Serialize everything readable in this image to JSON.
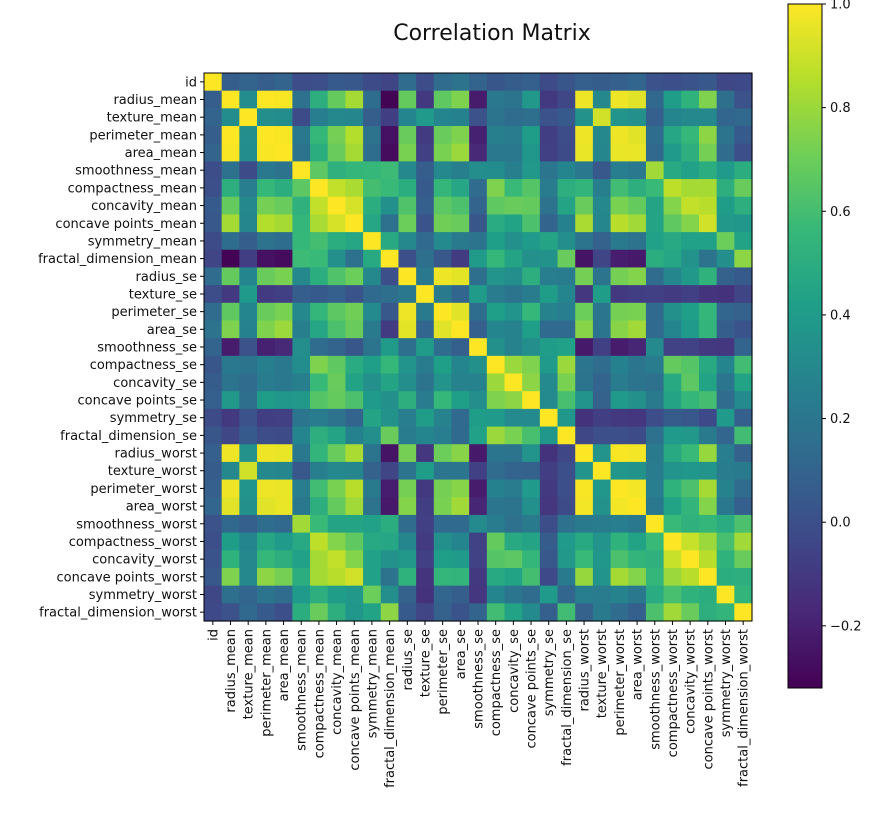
{
  "chart_data": {
    "type": "heatmap",
    "title": "Correlation Matrix",
    "labels": [
      "id",
      "radius_mean",
      "texture_mean",
      "perimeter_mean",
      "area_mean",
      "smoothness_mean",
      "compactness_mean",
      "concavity_mean",
      "concave points_mean",
      "symmetry_mean",
      "fractal_dimension_mean",
      "radius_se",
      "texture_se",
      "perimeter_se",
      "area_se",
      "smoothness_se",
      "compactness_se",
      "concavity_se",
      "concave points_se",
      "symmetry_se",
      "fractal_dimension_se",
      "radius_worst",
      "texture_worst",
      "perimeter_worst",
      "area_worst",
      "smoothness_worst",
      "compactness_worst",
      "concavity_worst",
      "concave points_worst",
      "symmetry_worst",
      "fractal_dimension_worst"
    ],
    "colormap": "viridis",
    "colorbar": {
      "range": [
        -0.32,
        1.0
      ],
      "ticks": [
        -0.2,
        0.0,
        0.2,
        0.4,
        0.6,
        0.8,
        1.0
      ],
      "tick_labels": [
        "−0.2",
        "0.0",
        "0.2",
        "0.4",
        "0.6",
        "0.8",
        "1.0"
      ]
    },
    "values": [
      [
        1.0,
        0.07,
        0.1,
        0.07,
        0.1,
        -0.01,
        0.0,
        0.05,
        0.04,
        -0.02,
        -0.05,
        0.14,
        -0.01,
        0.14,
        0.18,
        0.1,
        0.03,
        0.06,
        0.08,
        -0.02,
        0.03,
        0.08,
        0.06,
        0.08,
        0.11,
        0.01,
        -0.0,
        0.02,
        0.04,
        -0.04,
        -0.03
      ],
      [
        0.07,
        1.0,
        0.32,
        1.0,
        0.99,
        0.17,
        0.51,
        0.68,
        0.82,
        0.15,
        -0.31,
        0.68,
        -0.1,
        0.67,
        0.74,
        -0.22,
        0.21,
        0.19,
        0.38,
        -0.1,
        -0.04,
        0.97,
        0.3,
        0.97,
        0.94,
        0.12,
        0.41,
        0.53,
        0.74,
        0.16,
        0.01
      ],
      [
        0.1,
        0.32,
        1.0,
        0.33,
        0.32,
        -0.02,
        0.24,
        0.3,
        0.29,
        0.07,
        -0.08,
        0.28,
        0.39,
        0.28,
        0.26,
        0.01,
        0.19,
        0.14,
        0.16,
        0.01,
        0.05,
        0.35,
        0.91,
        0.36,
        0.34,
        0.08,
        0.28,
        0.3,
        0.3,
        0.11,
        0.12
      ],
      [
        0.07,
        1.0,
        0.33,
        1.0,
        0.99,
        0.21,
        0.56,
        0.72,
        0.85,
        0.18,
        -0.26,
        0.69,
        -0.09,
        0.69,
        0.74,
        -0.2,
        0.25,
        0.23,
        0.41,
        -0.08,
        -0.01,
        0.97,
        0.3,
        0.97,
        0.94,
        0.15,
        0.46,
        0.56,
        0.77,
        0.19,
        0.05
      ],
      [
        0.1,
        0.99,
        0.32,
        0.99,
        1.0,
        0.18,
        0.5,
        0.69,
        0.82,
        0.15,
        -0.28,
        0.73,
        -0.07,
        0.73,
        0.8,
        -0.17,
        0.21,
        0.21,
        0.37,
        -0.07,
        -0.02,
        0.96,
        0.29,
        0.96,
        0.96,
        0.12,
        0.39,
        0.51,
        0.72,
        0.14,
        0.0
      ],
      [
        -0.01,
        0.17,
        -0.02,
        0.21,
        0.18,
        1.0,
        0.66,
        0.52,
        0.55,
        0.56,
        0.58,
        0.3,
        0.07,
        0.3,
        0.25,
        0.33,
        0.32,
        0.25,
        0.38,
        0.2,
        0.28,
        0.21,
        0.04,
        0.24,
        0.21,
        0.81,
        0.47,
        0.43,
        0.5,
        0.39,
        0.5
      ],
      [
        0.0,
        0.51,
        0.24,
        0.56,
        0.5,
        0.66,
        1.0,
        0.88,
        0.83,
        0.6,
        0.57,
        0.5,
        0.05,
        0.55,
        0.46,
        0.14,
        0.74,
        0.57,
        0.64,
        0.23,
        0.51,
        0.54,
        0.25,
        0.59,
        0.51,
        0.57,
        0.87,
        0.82,
        0.82,
        0.51,
        0.69
      ],
      [
        0.05,
        0.68,
        0.3,
        0.72,
        0.69,
        0.52,
        0.88,
        1.0,
        0.92,
        0.5,
        0.34,
        0.63,
        0.08,
        0.66,
        0.62,
        0.1,
        0.67,
        0.69,
        0.68,
        0.18,
        0.45,
        0.69,
        0.3,
        0.73,
        0.68,
        0.45,
        0.75,
        0.88,
        0.86,
        0.41,
        0.51
      ],
      [
        0.04,
        0.82,
        0.29,
        0.85,
        0.82,
        0.55,
        0.83,
        0.92,
        1.0,
        0.46,
        0.17,
        0.7,
        0.02,
        0.71,
        0.69,
        0.03,
        0.49,
        0.44,
        0.62,
        0.1,
        0.26,
        0.83,
        0.29,
        0.86,
        0.81,
        0.45,
        0.67,
        0.75,
        0.91,
        0.38,
        0.37
      ],
      [
        -0.02,
        0.15,
        0.07,
        0.18,
        0.15,
        0.56,
        0.6,
        0.5,
        0.46,
        1.0,
        0.48,
        0.3,
        0.13,
        0.31,
        0.22,
        0.19,
        0.42,
        0.34,
        0.39,
        0.45,
        0.33,
        0.19,
        0.09,
        0.22,
        0.18,
        0.43,
        0.47,
        0.43,
        0.43,
        0.7,
        0.44
      ],
      [
        -0.05,
        -0.31,
        -0.08,
        -0.26,
        -0.28,
        0.58,
        0.57,
        0.34,
        0.17,
        0.48,
        1.0,
        0.0,
        0.16,
        0.04,
        -0.09,
        0.4,
        0.56,
        0.45,
        0.34,
        0.35,
        0.69,
        -0.25,
        -0.05,
        -0.21,
        -0.23,
        0.5,
        0.46,
        0.35,
        0.18,
        0.33,
        0.77
      ],
      [
        0.14,
        0.68,
        0.28,
        0.69,
        0.73,
        0.3,
        0.5,
        0.63,
        0.7,
        0.3,
        0.0,
        1.0,
        0.21,
        0.97,
        0.95,
        0.16,
        0.36,
        0.33,
        0.51,
        0.24,
        0.23,
        0.72,
        0.19,
        0.72,
        0.75,
        0.14,
        0.29,
        0.38,
        0.53,
        0.09,
        0.05
      ],
      [
        -0.01,
        -0.1,
        0.39,
        -0.09,
        -0.07,
        0.07,
        0.05,
        0.08,
        0.02,
        0.13,
        0.16,
        0.21,
        1.0,
        0.22,
        0.11,
        0.4,
        0.23,
        0.19,
        0.23,
        0.41,
        0.28,
        -0.11,
        0.41,
        -0.1,
        -0.08,
        -0.07,
        -0.09,
        -0.07,
        -0.12,
        -0.13,
        -0.05
      ],
      [
        0.14,
        0.67,
        0.28,
        0.69,
        0.73,
        0.3,
        0.55,
        0.66,
        0.71,
        0.31,
        0.04,
        0.97,
        0.22,
        1.0,
        0.94,
        0.15,
        0.42,
        0.36,
        0.56,
        0.27,
        0.24,
        0.7,
        0.2,
        0.72,
        0.73,
        0.13,
        0.34,
        0.42,
        0.55,
        0.11,
        0.09
      ],
      [
        0.18,
        0.74,
        0.26,
        0.74,
        0.8,
        0.25,
        0.46,
        0.62,
        0.69,
        0.22,
        -0.09,
        0.95,
        0.11,
        0.94,
        1.0,
        0.08,
        0.28,
        0.27,
        0.42,
        0.13,
        0.13,
        0.76,
        0.2,
        0.76,
        0.81,
        0.13,
        0.28,
        0.39,
        0.54,
        0.07,
        0.02
      ],
      [
        0.1,
        -0.22,
        0.01,
        -0.2,
        -0.17,
        0.33,
        0.14,
        0.1,
        0.03,
        0.19,
        0.4,
        0.16,
        0.4,
        0.15,
        0.08,
        1.0,
        0.34,
        0.27,
        0.33,
        0.41,
        0.43,
        -0.23,
        -0.07,
        -0.22,
        -0.18,
        0.31,
        -0.06,
        -0.06,
        -0.1,
        -0.11,
        0.1
      ],
      [
        0.03,
        0.21,
        0.19,
        0.25,
        0.21,
        0.32,
        0.74,
        0.67,
        0.49,
        0.42,
        0.56,
        0.36,
        0.23,
        0.42,
        0.28,
        0.34,
        1.0,
        0.8,
        0.74,
        0.39,
        0.8,
        0.2,
        0.14,
        0.26,
        0.2,
        0.23,
        0.68,
        0.64,
        0.48,
        0.28,
        0.59
      ],
      [
        0.06,
        0.19,
        0.14,
        0.23,
        0.21,
        0.25,
        0.57,
        0.69,
        0.44,
        0.34,
        0.45,
        0.33,
        0.19,
        0.36,
        0.27,
        0.27,
        0.8,
        1.0,
        0.77,
        0.31,
        0.73,
        0.19,
        0.1,
        0.23,
        0.19,
        0.17,
        0.48,
        0.66,
        0.44,
        0.2,
        0.44
      ],
      [
        0.08,
        0.38,
        0.16,
        0.41,
        0.37,
        0.38,
        0.64,
        0.68,
        0.62,
        0.39,
        0.34,
        0.51,
        0.23,
        0.56,
        0.42,
        0.33,
        0.74,
        0.77,
        1.0,
        0.31,
        0.61,
        0.36,
        0.09,
        0.39,
        0.34,
        0.22,
        0.45,
        0.55,
        0.6,
        0.14,
        0.31
      ],
      [
        -0.02,
        -0.1,
        0.01,
        -0.08,
        -0.07,
        0.2,
        0.23,
        0.18,
        0.1,
        0.45,
        0.35,
        0.24,
        0.41,
        0.27,
        0.13,
        0.41,
        0.39,
        0.31,
        0.31,
        1.0,
        0.37,
        -0.13,
        -0.08,
        -0.1,
        -0.11,
        -0.01,
        0.06,
        0.04,
        -0.03,
        0.39,
        0.08
      ],
      [
        0.03,
        -0.04,
        0.05,
        -0.01,
        -0.02,
        0.28,
        0.51,
        0.45,
        0.26,
        0.33,
        0.69,
        0.23,
        0.28,
        0.24,
        0.13,
        0.43,
        0.8,
        0.73,
        0.61,
        0.37,
        1.0,
        -0.04,
        -0.0,
        -0.0,
        -0.02,
        0.17,
        0.39,
        0.38,
        0.22,
        0.11,
        0.59
      ],
      [
        0.08,
        0.97,
        0.35,
        0.97,
        0.96,
        0.21,
        0.54,
        0.69,
        0.83,
        0.19,
        -0.25,
        0.72,
        -0.11,
        0.7,
        0.76,
        -0.23,
        0.2,
        0.19,
        0.36,
        -0.13,
        -0.04,
        1.0,
        0.36,
        0.99,
        0.98,
        0.22,
        0.48,
        0.57,
        0.79,
        0.24,
        0.09
      ],
      [
        0.06,
        0.3,
        0.91,
        0.3,
        0.29,
        0.04,
        0.25,
        0.3,
        0.29,
        0.09,
        -0.05,
        0.19,
        0.41,
        0.2,
        0.2,
        -0.07,
        0.14,
        0.1,
        0.09,
        -0.08,
        -0.0,
        0.36,
        1.0,
        0.37,
        0.35,
        0.23,
        0.36,
        0.37,
        0.36,
        0.23,
        0.22
      ],
      [
        0.08,
        0.97,
        0.36,
        0.97,
        0.96,
        0.24,
        0.59,
        0.73,
        0.86,
        0.22,
        -0.21,
        0.72,
        -0.1,
        0.72,
        0.76,
        -0.22,
        0.26,
        0.23,
        0.39,
        -0.1,
        -0.0,
        0.99,
        0.37,
        1.0,
        0.98,
        0.24,
        0.53,
        0.62,
        0.82,
        0.27,
        0.14
      ],
      [
        0.11,
        0.94,
        0.34,
        0.94,
        0.96,
        0.21,
        0.51,
        0.68,
        0.81,
        0.18,
        -0.23,
        0.75,
        -0.08,
        0.73,
        0.81,
        -0.18,
        0.2,
        0.19,
        0.34,
        -0.11,
        -0.02,
        0.98,
        0.35,
        0.98,
        1.0,
        0.21,
        0.44,
        0.54,
        0.75,
        0.21,
        0.08
      ],
      [
        0.01,
        0.12,
        0.08,
        0.15,
        0.12,
        0.81,
        0.57,
        0.45,
        0.45,
        0.43,
        0.5,
        0.14,
        -0.07,
        0.13,
        0.13,
        0.31,
        0.23,
        0.17,
        0.22,
        -0.01,
        0.17,
        0.22,
        0.23,
        0.24,
        0.21,
        1.0,
        0.57,
        0.52,
        0.55,
        0.49,
        0.62
      ],
      [
        -0.0,
        0.41,
        0.28,
        0.46,
        0.39,
        0.47,
        0.87,
        0.75,
        0.67,
        0.47,
        0.46,
        0.29,
        -0.09,
        0.34,
        0.28,
        -0.06,
        0.68,
        0.48,
        0.45,
        0.06,
        0.39,
        0.48,
        0.36,
        0.53,
        0.44,
        0.57,
        1.0,
        0.89,
        0.8,
        0.61,
        0.81
      ],
      [
        0.02,
        0.53,
        0.3,
        0.56,
        0.51,
        0.43,
        0.82,
        0.88,
        0.75,
        0.43,
        0.35,
        0.38,
        -0.07,
        0.42,
        0.39,
        -0.06,
        0.64,
        0.66,
        0.55,
        0.04,
        0.38,
        0.57,
        0.37,
        0.62,
        0.54,
        0.52,
        0.89,
        1.0,
        0.86,
        0.53,
        0.69
      ],
      [
        0.04,
        0.74,
        0.3,
        0.77,
        0.72,
        0.5,
        0.82,
        0.86,
        0.91,
        0.43,
        0.18,
        0.53,
        -0.12,
        0.55,
        0.54,
        -0.1,
        0.48,
        0.44,
        0.6,
        -0.03,
        0.22,
        0.79,
        0.36,
        0.82,
        0.75,
        0.55,
        0.8,
        0.86,
        1.0,
        0.5,
        0.51
      ],
      [
        -0.04,
        0.16,
        0.11,
        0.19,
        0.14,
        0.39,
        0.51,
        0.41,
        0.38,
        0.7,
        0.33,
        0.09,
        -0.13,
        0.11,
        0.07,
        -0.11,
        0.28,
        0.2,
        0.14,
        0.39,
        0.11,
        0.24,
        0.23,
        0.27,
        0.21,
        0.49,
        0.61,
        0.53,
        0.5,
        1.0,
        0.54
      ],
      [
        -0.03,
        0.01,
        0.12,
        0.05,
        0.0,
        0.5,
        0.69,
        0.51,
        0.37,
        0.44,
        0.77,
        0.05,
        -0.05,
        0.09,
        0.02,
        0.1,
        0.59,
        0.44,
        0.31,
        0.08,
        0.59,
        0.09,
        0.22,
        0.14,
        0.08,
        0.62,
        0.81,
        0.69,
        0.51,
        0.54,
        1.0
      ]
    ]
  }
}
